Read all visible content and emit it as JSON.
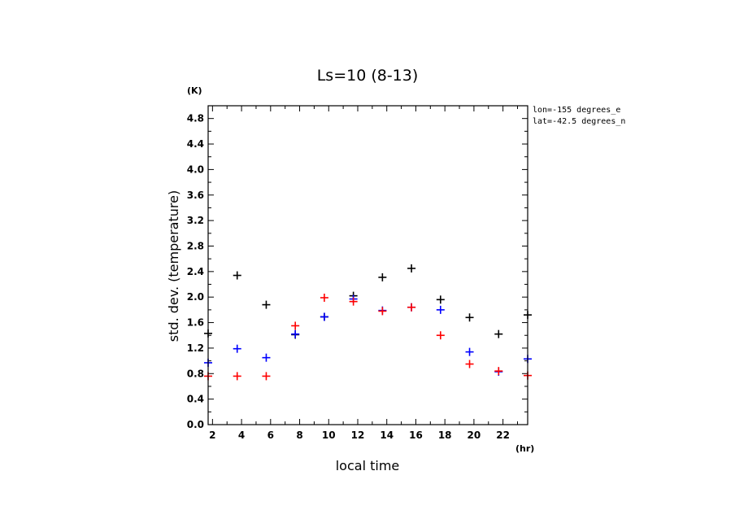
{
  "chart_data": {
    "type": "scatter",
    "title": "Ls=10 (8-13)",
    "xlabel": "local time",
    "ylabel": "std. dev. (temperature)",
    "x_unit": "(hr)",
    "y_unit": "(K)",
    "xlim": [
      1.7,
      23.7
    ],
    "ylim": [
      0.0,
      5.0
    ],
    "xticks": [
      "2",
      "4",
      "6",
      "8",
      "10",
      "12",
      "14",
      "16",
      "18",
      "20",
      "22"
    ],
    "yticks": [
      "0.0",
      "0.4",
      "0.8",
      "1.2",
      "1.6",
      "2.0",
      "2.4",
      "2.8",
      "3.2",
      "3.6",
      "4.0",
      "4.4",
      "4.8"
    ],
    "info": [
      "lon=-155 degrees_e",
      "lat=-42.5 degrees_n"
    ],
    "series": [
      {
        "color": "#000000",
        "points": [
          [
            1.7,
            1.43
          ],
          [
            3.7,
            2.34
          ],
          [
            5.7,
            1.88
          ],
          [
            7.7,
            1.41
          ],
          [
            9.7,
            1.69
          ],
          [
            11.7,
            2.02
          ],
          [
            13.7,
            2.31
          ],
          [
            15.7,
            2.45
          ],
          [
            17.7,
            1.96
          ],
          [
            19.7,
            1.68
          ],
          [
            21.7,
            1.42
          ],
          [
            23.7,
            1.72
          ]
        ]
      },
      {
        "color": "#0000ff",
        "points": [
          [
            1.7,
            0.97
          ],
          [
            3.7,
            1.19
          ],
          [
            5.7,
            1.05
          ],
          [
            7.7,
            1.42
          ],
          [
            9.7,
            1.69
          ],
          [
            11.7,
            1.97
          ],
          [
            13.7,
            1.79
          ],
          [
            15.7,
            1.84
          ],
          [
            17.7,
            1.8
          ],
          [
            19.7,
            1.14
          ],
          [
            21.7,
            0.83
          ],
          [
            23.7,
            1.03
          ]
        ]
      },
      {
        "color": "#ff0000",
        "points": [
          [
            1.7,
            0.76
          ],
          [
            3.7,
            0.76
          ],
          [
            5.7,
            0.76
          ],
          [
            7.7,
            1.55
          ],
          [
            9.7,
            1.99
          ],
          [
            11.7,
            1.93
          ],
          [
            13.7,
            1.78
          ],
          [
            15.7,
            1.84
          ],
          [
            17.7,
            1.4
          ],
          [
            19.7,
            0.95
          ],
          [
            21.7,
            0.84
          ],
          [
            23.7,
            0.77
          ]
        ]
      }
    ]
  }
}
